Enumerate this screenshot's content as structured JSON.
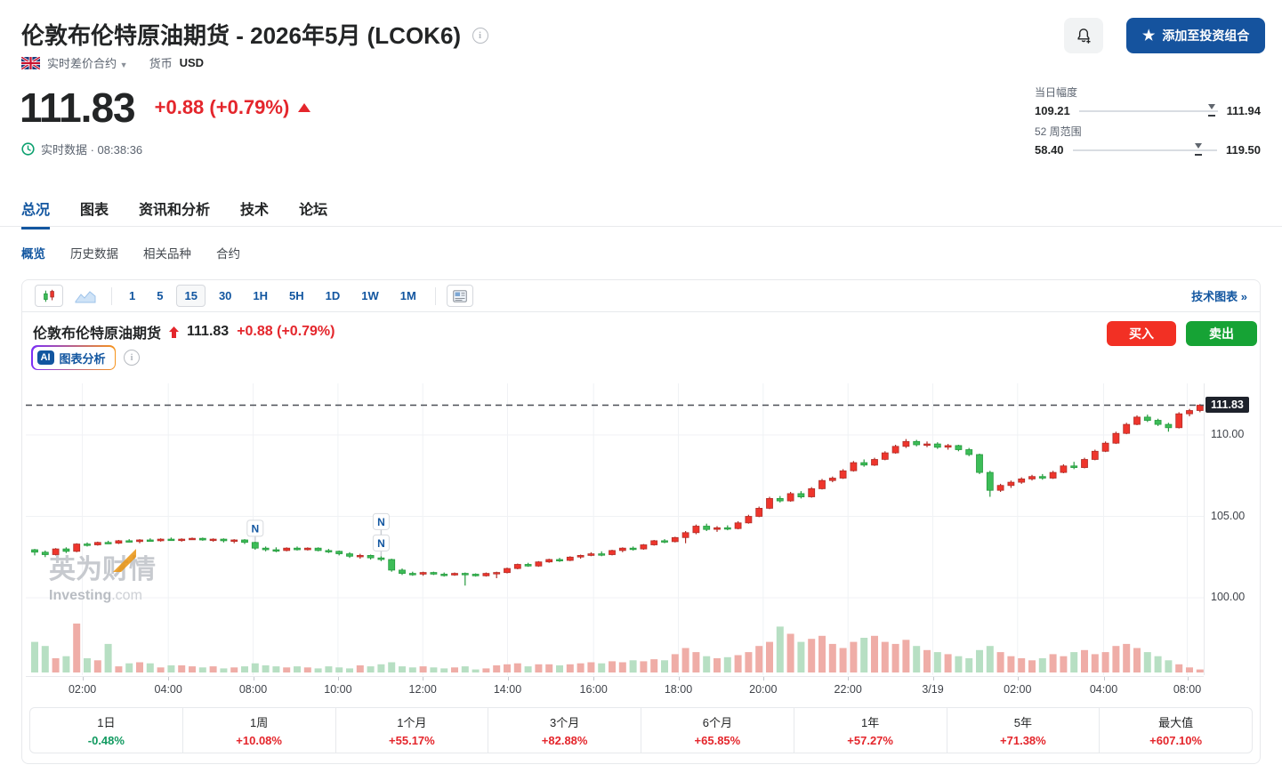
{
  "header": {
    "title": "伦敦布伦特原油期货 - 2026年5月 (LCOK6)",
    "instrument_type": "实时差价合约",
    "currency_label": "货币",
    "currency_value": "USD",
    "price": "111.83",
    "change": "+0.88 (+0.79%)",
    "realtime_text": "实时数据 · 08:38:36",
    "portfolio_button": "添加至投资组合",
    "day_range": {
      "label": "当日幅度",
      "low": "109.21",
      "high": "111.94",
      "pos": 0.96
    },
    "week52_range": {
      "label": "52 周范围",
      "low": "58.40",
      "high": "119.50",
      "pos": 0.87
    }
  },
  "tabs": {
    "active": 0,
    "items": [
      {
        "id": "overview",
        "label": "总况"
      },
      {
        "id": "chart",
        "label": "图表"
      },
      {
        "id": "news-analysis",
        "label": "资讯和分析"
      },
      {
        "id": "technical",
        "label": "技术"
      },
      {
        "id": "forum",
        "label": "论坛"
      }
    ]
  },
  "subtabs": {
    "active": 0,
    "items": [
      {
        "id": "profile",
        "label": "概览"
      },
      {
        "id": "historical-data",
        "label": "历史数据"
      },
      {
        "id": "related",
        "label": "相关品种"
      },
      {
        "id": "contracts",
        "label": "合约"
      }
    ]
  },
  "toolbar": {
    "intervals": [
      "1",
      "5",
      "15",
      "30",
      "1H",
      "5H",
      "1D",
      "1W",
      "1M"
    ],
    "active_interval": "15",
    "tech_chart_link": "技术图表 »"
  },
  "chart_header": {
    "name": "伦敦布伦特原油期货",
    "price": "111.83",
    "change": "+0.88 (+0.79%)",
    "ai_badge": "AI",
    "ai_label": "图表分析",
    "buy_label": "买入",
    "sell_label": "卖出"
  },
  "watermark": {
    "line1": "英为财情",
    "line2": "Investing",
    "dotcom": ".com"
  },
  "performance": {
    "cells": [
      {
        "label": "1日",
        "value": "-0.48%",
        "dir": "down"
      },
      {
        "label": "1周",
        "value": "+10.08%",
        "dir": "up"
      },
      {
        "label": "1个月",
        "value": "+55.17%",
        "dir": "up"
      },
      {
        "label": "3个月",
        "value": "+82.88%",
        "dir": "up"
      },
      {
        "label": "6个月",
        "value": "+65.85%",
        "dir": "up"
      },
      {
        "label": "1年",
        "value": "+57.27%",
        "dir": "up"
      },
      {
        "label": "5年",
        "value": "+71.38%",
        "dir": "up"
      },
      {
        "label": "最大值",
        "value": "+607.10%",
        "dir": "up"
      }
    ]
  },
  "colors": {
    "accent_blue": "#1256a0",
    "text_red": "#e4262c",
    "text_green": "#119a60",
    "candle_up_fill": "#ef352c",
    "candle_up_stroke": "#b02e28",
    "candle_down_fill": "#3dbd58",
    "candle_down_stroke": "#259a3e",
    "vol_up": "#efada7",
    "vol_down": "#b7dfc3",
    "grid": "#f0f2f5",
    "dashed_line": "#4a4f57",
    "buy_button": "#f23024",
    "sell_button": "#16a335"
  },
  "chart_data": {
    "type": "candlestick",
    "interval": "15m",
    "instrument": "伦敦布伦特原油期货 LCOK6",
    "last_price": 111.83,
    "price_line": {
      "value": 111.83,
      "label": "111.83"
    },
    "y_axis": {
      "ticks": [
        {
          "label": "110.00",
          "value": 110
        },
        {
          "label": "105.00",
          "value": 105
        },
        {
          "label": "100.00",
          "value": 100
        }
      ],
      "range": [
        99.2,
        112.6
      ]
    },
    "x_ticks": [
      {
        "label": "02:00",
        "pos": 0.048
      },
      {
        "label": "04:00",
        "pos": 0.121
      },
      {
        "label": "08:00",
        "pos": 0.193
      },
      {
        "label": "10:00",
        "pos": 0.265
      },
      {
        "label": "12:00",
        "pos": 0.337
      },
      {
        "label": "14:00",
        "pos": 0.409
      },
      {
        "label": "16:00",
        "pos": 0.482
      },
      {
        "label": "18:00",
        "pos": 0.554
      },
      {
        "label": "20:00",
        "pos": 0.626
      },
      {
        "label": "22:00",
        "pos": 0.698
      },
      {
        "label": "3/19",
        "pos": 0.77
      },
      {
        "label": "02:00",
        "pos": 0.842
      },
      {
        "label": "04:00",
        "pos": 0.915
      },
      {
        "label": "08:00",
        "pos": 0.986
      }
    ],
    "news_markers": [
      {
        "index": 21,
        "count": 1
      },
      {
        "index": 33,
        "count": 2
      }
    ],
    "candles": [
      [
        102.95,
        103.0,
        102.6,
        102.8
      ],
      [
        102.8,
        102.9,
        102.5,
        102.65
      ],
      [
        102.65,
        103.05,
        102.6,
        103.0
      ],
      [
        103.0,
        103.1,
        102.75,
        102.85
      ],
      [
        102.85,
        103.35,
        102.8,
        103.3
      ],
      [
        103.3,
        103.4,
        103.15,
        103.25
      ],
      [
        103.25,
        103.45,
        103.2,
        103.4
      ],
      [
        103.4,
        103.5,
        103.3,
        103.35
      ],
      [
        103.35,
        103.55,
        103.3,
        103.5
      ],
      [
        103.5,
        103.6,
        103.4,
        103.45
      ],
      [
        103.45,
        103.6,
        103.35,
        103.55
      ],
      [
        103.55,
        103.65,
        103.45,
        103.5
      ],
      [
        103.5,
        103.65,
        103.45,
        103.6
      ],
      [
        103.6,
        103.7,
        103.5,
        103.55
      ],
      [
        103.55,
        103.65,
        103.45,
        103.6
      ],
      [
        103.6,
        103.7,
        103.55,
        103.65
      ],
      [
        103.65,
        103.7,
        103.5,
        103.55
      ],
      [
        103.55,
        103.65,
        103.45,
        103.6
      ],
      [
        103.6,
        103.65,
        103.4,
        103.5
      ],
      [
        103.5,
        103.6,
        103.35,
        103.55
      ],
      [
        103.55,
        103.6,
        103.3,
        103.4
      ],
      [
        103.4,
        103.45,
        102.95,
        103.05
      ],
      [
        103.05,
        103.15,
        102.85,
        102.95
      ],
      [
        102.95,
        103.1,
        102.8,
        102.9
      ],
      [
        102.9,
        103.1,
        102.85,
        103.05
      ],
      [
        103.05,
        103.15,
        102.9,
        102.95
      ],
      [
        102.95,
        103.1,
        102.9,
        103.05
      ],
      [
        103.05,
        103.1,
        102.85,
        102.9
      ],
      [
        102.9,
        103.0,
        102.75,
        102.85
      ],
      [
        102.85,
        102.9,
        102.6,
        102.7
      ],
      [
        102.7,
        102.8,
        102.45,
        102.55
      ],
      [
        102.55,
        102.7,
        102.4,
        102.6
      ],
      [
        102.6,
        102.65,
        102.35,
        102.45
      ],
      [
        102.45,
        102.55,
        102.25,
        102.35
      ],
      [
        102.35,
        102.4,
        101.6,
        101.7
      ],
      [
        101.7,
        101.8,
        101.4,
        101.5
      ],
      [
        101.5,
        101.6,
        101.35,
        101.45
      ],
      [
        101.45,
        101.6,
        101.35,
        101.55
      ],
      [
        101.55,
        101.6,
        101.4,
        101.45
      ],
      [
        101.45,
        101.55,
        101.3,
        101.4
      ],
      [
        101.4,
        101.55,
        101.35,
        101.5
      ],
      [
        101.5,
        101.55,
        100.75,
        101.45
      ],
      [
        101.45,
        101.5,
        101.3,
        101.35
      ],
      [
        101.35,
        101.55,
        101.3,
        101.5
      ],
      [
        101.5,
        101.6,
        101.2,
        101.55
      ],
      [
        101.55,
        101.85,
        101.5,
        101.8
      ],
      [
        101.8,
        102.1,
        101.75,
        102.05
      ],
      [
        102.05,
        102.15,
        101.9,
        101.95
      ],
      [
        101.95,
        102.25,
        101.9,
        102.2
      ],
      [
        102.2,
        102.4,
        102.15,
        102.35
      ],
      [
        102.35,
        102.45,
        102.2,
        102.3
      ],
      [
        102.3,
        102.55,
        102.25,
        102.5
      ],
      [
        102.5,
        102.65,
        102.4,
        102.6
      ],
      [
        102.6,
        102.8,
        102.55,
        102.7
      ],
      [
        102.7,
        102.85,
        102.55,
        102.65
      ],
      [
        102.65,
        102.95,
        102.6,
        102.9
      ],
      [
        102.9,
        103.1,
        102.8,
        103.05
      ],
      [
        103.05,
        103.15,
        102.9,
        103.0
      ],
      [
        103.0,
        103.3,
        102.95,
        103.25
      ],
      [
        103.25,
        103.55,
        103.2,
        103.5
      ],
      [
        103.5,
        103.6,
        103.35,
        103.45
      ],
      [
        103.45,
        103.75,
        103.4,
        103.7
      ],
      [
        103.7,
        104.1,
        103.35,
        104.0
      ],
      [
        104.0,
        104.5,
        103.9,
        104.4
      ],
      [
        104.4,
        104.55,
        104.1,
        104.2
      ],
      [
        104.2,
        104.4,
        104.05,
        104.3
      ],
      [
        104.3,
        104.45,
        104.15,
        104.25
      ],
      [
        104.25,
        104.7,
        104.2,
        104.6
      ],
      [
        104.6,
        105.1,
        104.55,
        105.0
      ],
      [
        105.0,
        105.6,
        104.95,
        105.5
      ],
      [
        105.5,
        106.2,
        105.45,
        106.1
      ],
      [
        106.1,
        106.25,
        105.85,
        105.95
      ],
      [
        105.95,
        106.5,
        105.9,
        106.4
      ],
      [
        106.4,
        106.55,
        106.1,
        106.2
      ],
      [
        106.2,
        106.8,
        106.15,
        106.7
      ],
      [
        106.7,
        107.3,
        106.65,
        107.2
      ],
      [
        107.2,
        107.45,
        107.1,
        107.35
      ],
      [
        107.35,
        107.9,
        107.3,
        107.8
      ],
      [
        107.8,
        108.4,
        107.75,
        108.3
      ],
      [
        108.3,
        108.5,
        108.05,
        108.15
      ],
      [
        108.15,
        108.6,
        108.1,
        108.5
      ],
      [
        108.5,
        109.0,
        108.45,
        108.9
      ],
      [
        108.9,
        109.4,
        108.85,
        109.3
      ],
      [
        109.3,
        109.75,
        109.2,
        109.6
      ],
      [
        109.6,
        109.7,
        109.3,
        109.4
      ],
      [
        109.4,
        109.6,
        109.25,
        109.45
      ],
      [
        109.45,
        109.55,
        109.15,
        109.25
      ],
      [
        109.25,
        109.45,
        109.1,
        109.35
      ],
      [
        109.35,
        109.4,
        109.0,
        109.1
      ],
      [
        109.1,
        109.2,
        108.7,
        108.8
      ],
      [
        108.8,
        108.85,
        107.6,
        107.7
      ],
      [
        107.7,
        107.8,
        106.2,
        106.6
      ],
      [
        106.6,
        107.0,
        106.5,
        106.9
      ],
      [
        106.9,
        107.2,
        106.75,
        107.1
      ],
      [
        107.1,
        107.4,
        107.0,
        107.3
      ],
      [
        107.3,
        107.55,
        107.2,
        107.45
      ],
      [
        107.45,
        107.6,
        107.25,
        107.35
      ],
      [
        107.35,
        107.8,
        107.3,
        107.7
      ],
      [
        107.7,
        108.2,
        107.65,
        108.1
      ],
      [
        108.1,
        108.35,
        107.9,
        108.0
      ],
      [
        108.0,
        108.6,
        107.95,
        108.5
      ],
      [
        108.5,
        109.1,
        108.45,
        109.0
      ],
      [
        109.0,
        109.6,
        108.95,
        109.5
      ],
      [
        109.5,
        110.2,
        109.45,
        110.1
      ],
      [
        110.1,
        110.75,
        110.05,
        110.65
      ],
      [
        110.65,
        111.2,
        110.6,
        111.1
      ],
      [
        111.1,
        111.25,
        110.8,
        110.9
      ],
      [
        110.9,
        111.0,
        110.55,
        110.65
      ],
      [
        110.65,
        110.75,
        110.2,
        110.45
      ],
      [
        110.45,
        111.4,
        110.4,
        111.3
      ],
      [
        111.3,
        111.6,
        111.15,
        111.5
      ],
      [
        111.5,
        111.9,
        111.4,
        111.83
      ]
    ],
    "volumes": [
      30,
      26,
      14,
      16,
      48,
      14,
      12,
      28,
      6,
      9,
      10,
      9,
      5,
      7,
      7,
      6,
      5,
      6,
      4,
      5,
      6,
      9,
      7,
      6,
      5,
      6,
      5,
      4,
      6,
      5,
      4,
      7,
      6,
      8,
      10,
      6,
      5,
      6,
      5,
      4,
      5,
      6,
      3,
      4,
      7,
      8,
      9,
      6,
      8,
      8,
      7,
      8,
      9,
      10,
      9,
      11,
      10,
      12,
      11,
      13,
      12,
      18,
      24,
      20,
      16,
      14,
      15,
      17,
      20,
      26,
      30,
      45,
      38,
      30,
      33,
      36,
      28,
      24,
      30,
      34,
      36,
      30,
      28,
      32,
      26,
      22,
      20,
      18,
      16,
      14,
      22,
      26,
      20,
      16,
      14,
      12,
      14,
      18,
      16,
      20,
      22,
      18,
      20,
      26,
      28,
      24,
      20,
      16,
      12,
      8,
      5,
      3
    ]
  }
}
